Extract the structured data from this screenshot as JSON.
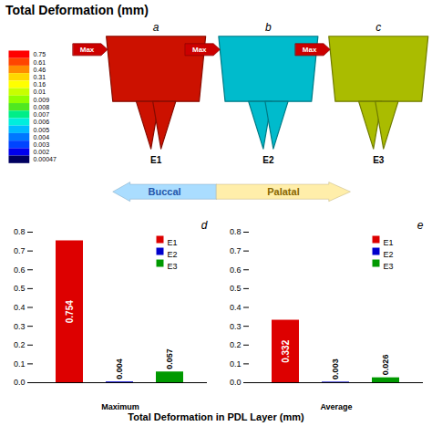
{
  "chart_data": [
    {
      "type": "diagram",
      "title": "Total Deformation (mm)",
      "categories": [
        "E1",
        "E2",
        "E3"
      ],
      "labels": [
        "a",
        "b",
        "c"
      ],
      "colors": [
        "#cc1100",
        "#00bbcc",
        "#aabc00"
      ],
      "colorbar": {
        "colors": [
          "#ff0000",
          "#ff4500",
          "#ff8c00",
          "#ffd700",
          "#ffff00",
          "#c8ff00",
          "#90ff00",
          "#50e820",
          "#00ee88",
          "#00eedd",
          "#00bbff",
          "#0077ff",
          "#0044ff",
          "#0000ee",
          "#000060"
        ],
        "ticks": [
          0.75,
          0.61,
          0.46,
          0.31,
          0.16,
          0.01,
          0.009,
          0.008,
          0.007,
          0.006,
          0.005,
          0.004,
          0.003,
          0.002,
          0.00047
        ]
      },
      "annotations": [
        {
          "text": "Max",
          "category": "E1",
          "color": "#cc0000"
        },
        {
          "text": "Max",
          "category": "E2",
          "color": "#cc0000"
        },
        {
          "text": "Max",
          "category": "E3",
          "color": "#cc0000"
        },
        {
          "text": "Buccal",
          "color": "#aaddff",
          "direction": "left"
        },
        {
          "text": "Palatal",
          "color": "#ffeeaa",
          "direction": "right"
        }
      ]
    },
    {
      "type": "bar",
      "title": "d",
      "xlabel": "Maximum",
      "categories": [
        "E1",
        "E2",
        "E3"
      ],
      "values": [
        0.754,
        0.004,
        0.057
      ],
      "colors": [
        "#dd0000",
        "#0000cc",
        "#009900"
      ],
      "ylim": [
        0,
        0.8
      ],
      "yticks": [
        {
          "value": 0,
          "label": "0.0"
        },
        0.1,
        0.2,
        0.3,
        0.4,
        0.5,
        0.6,
        0.7,
        0.8
      ],
      "data_labels": true,
      "legend": "upper right",
      "tick_labels": "y"
    },
    {
      "type": "bar",
      "title": "e",
      "xlabel": "Average",
      "categories": [
        "E1",
        "E2",
        "E3"
      ],
      "values": [
        0.332,
        0.003,
        0.026
      ],
      "colors": [
        "#dd0000",
        "#0000cc",
        "#009900"
      ],
      "ylim": [
        0,
        0.8
      ],
      "yticks": [
        {
          "value": 0,
          "label": "0.0"
        },
        0.1,
        0.2,
        0.3,
        0.4,
        0.5,
        0.6,
        0.7,
        0.8
      ],
      "data_labels": true,
      "legend": "upper right",
      "tick_labels": "y",
      "annotations": [
        {
          "text": "Total Deformation in PDL Layer (mm)"
        }
      ]
    }
  ]
}
